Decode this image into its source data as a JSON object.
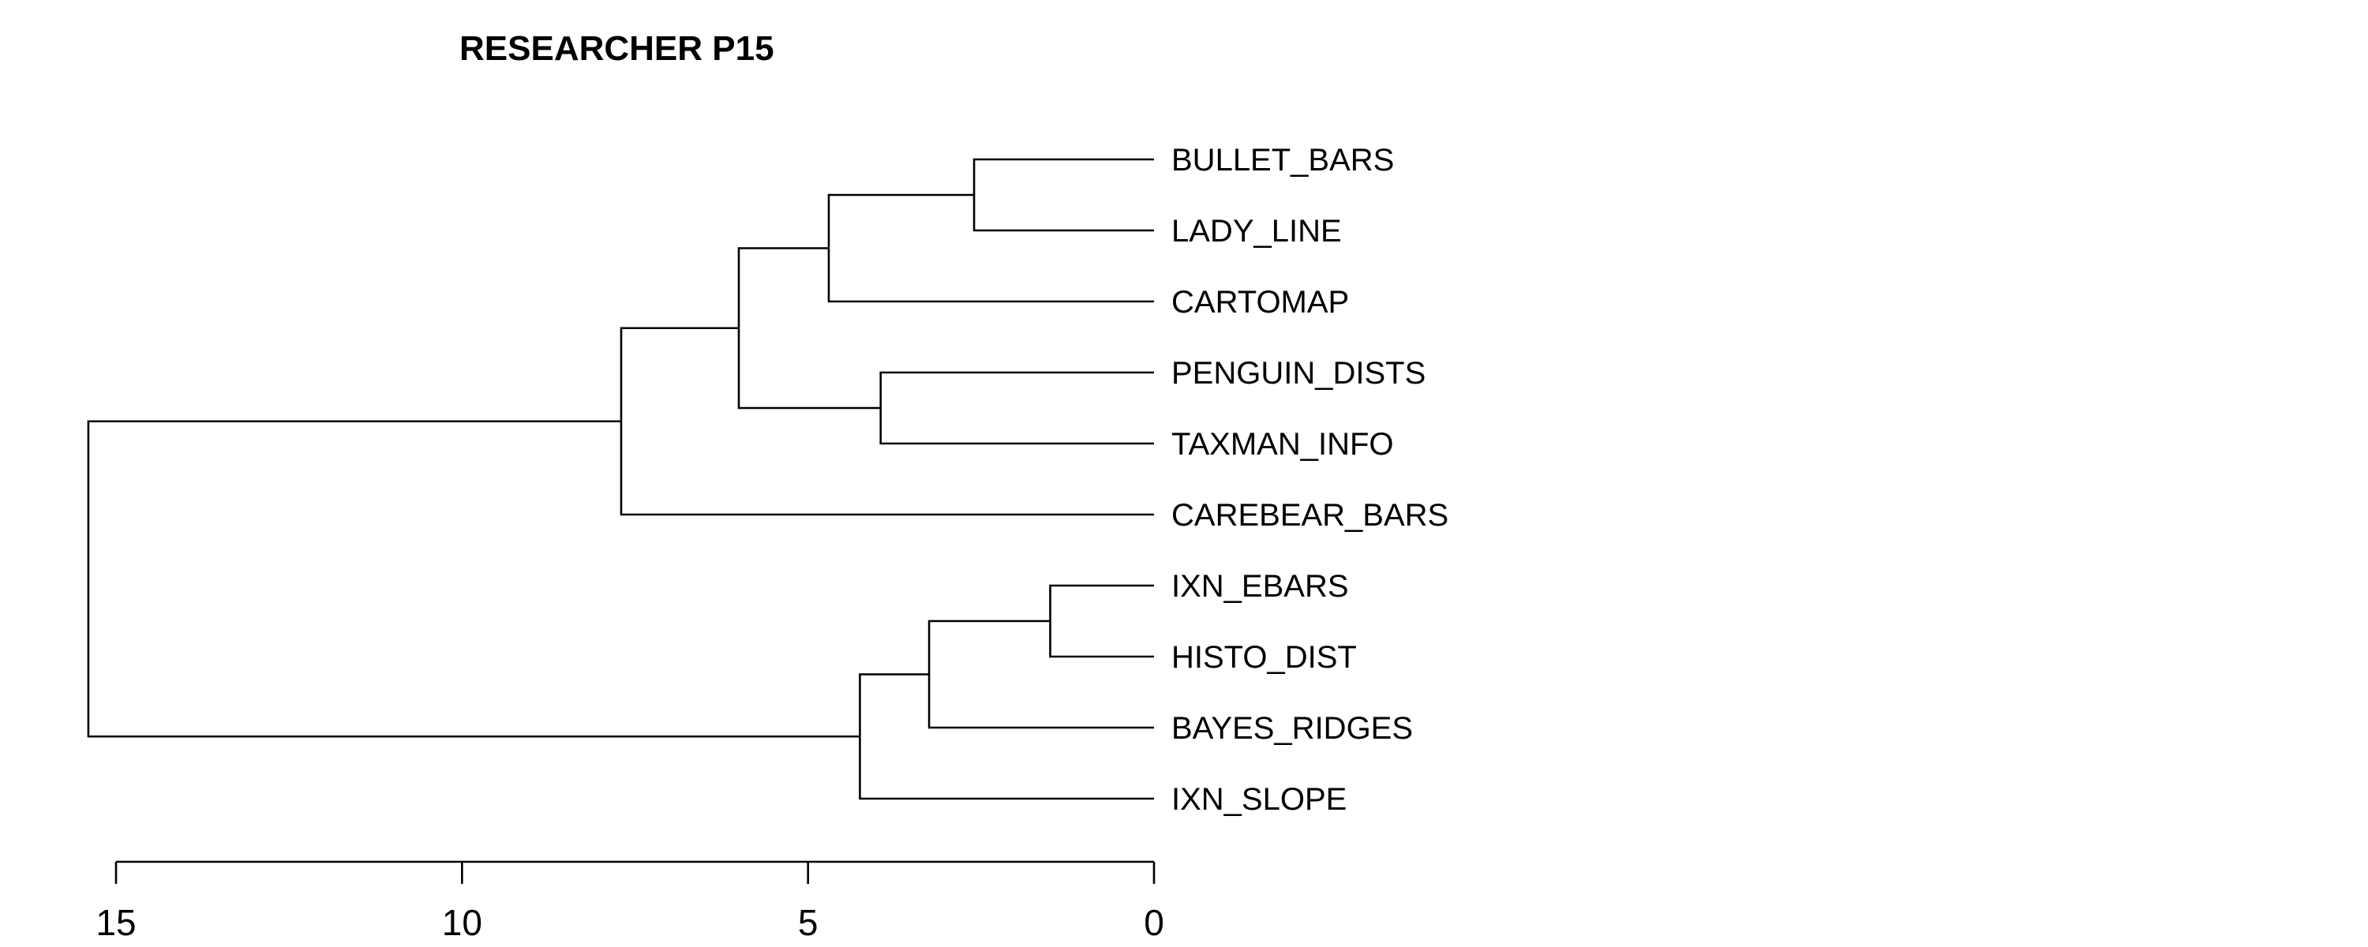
{
  "chart_data": {
    "type": "dendrogram",
    "title": "RESEARCHER P15",
    "orientation": "horizontal",
    "xlim": [
      15,
      0
    ],
    "ticks": [
      15,
      10,
      5,
      0
    ],
    "leaves": [
      "BULLET_BARS",
      "LADY_LINE",
      "CARTOMAP",
      "PENGUIN_DISTS",
      "TAXMAN_INFO",
      "CAREBEAR_BARS",
      "IXN_EBARS",
      "HISTO_DIST",
      "BAYES_RIDGES",
      "IXN_SLOPE"
    ],
    "merges": [
      {
        "id": "m1",
        "children": [
          "BULLET_BARS",
          "LADY_LINE"
        ],
        "height": 2.6
      },
      {
        "id": "m2",
        "children": [
          "m1",
          "CARTOMAP"
        ],
        "height": 4.7
      },
      {
        "id": "m3",
        "children": [
          "PENGUIN_DISTS",
          "TAXMAN_INFO"
        ],
        "height": 3.95
      },
      {
        "id": "m4",
        "children": [
          "m2",
          "m3"
        ],
        "height": 6.0
      },
      {
        "id": "m5",
        "children": [
          "m4",
          "CAREBEAR_BARS"
        ],
        "height": 7.7
      },
      {
        "id": "m6",
        "children": [
          "IXN_EBARS",
          "HISTO_DIST"
        ],
        "height": 1.5
      },
      {
        "id": "m7",
        "children": [
          "m6",
          "BAYES_RIDGES"
        ],
        "height": 3.25
      },
      {
        "id": "m8",
        "children": [
          "m7",
          "IXN_SLOPE"
        ],
        "height": 4.25
      },
      {
        "id": "m9",
        "children": [
          "m5",
          "m8"
        ],
        "height": 15.4
      }
    ]
  }
}
